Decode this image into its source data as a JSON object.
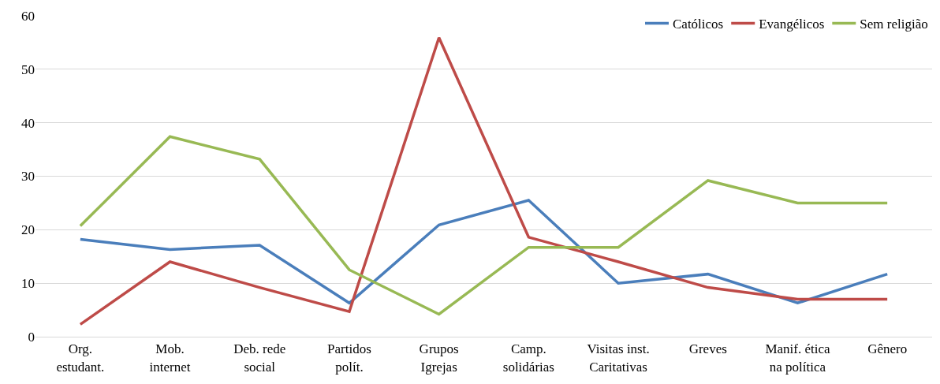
{
  "chart_data": {
    "type": "line",
    "categories": [
      "Org.\nestudant.",
      "Mob.\ninternet",
      "Deb. rede\nsocial",
      "Partidos\npolít.",
      "Grupos\nIgrejas",
      "Camp.\nsolidárias",
      "Visitas inst.\nCaritativas",
      "Greves",
      "Manif. ética\nna política",
      "Gênero"
    ],
    "series": [
      {
        "name": "Católicos",
        "color": "#4a7ebb",
        "values": [
          18.2,
          16.3,
          17.1,
          6.3,
          20.9,
          25.5,
          10.0,
          11.7,
          6.3,
          11.7
        ]
      },
      {
        "name": "Evangélicos",
        "color": "#be4b48",
        "values": [
          2.3,
          14.0,
          9.2,
          4.7,
          55.9,
          18.6,
          14.0,
          9.2,
          7.0,
          7.0
        ]
      },
      {
        "name": "Sem religião",
        "color": "#98b954",
        "values": [
          20.7,
          37.4,
          33.2,
          12.5,
          4.2,
          16.7,
          16.7,
          29.2,
          25.0,
          25.0
        ]
      }
    ],
    "ylim": [
      0,
      60
    ],
    "yticks": [
      0,
      10,
      20,
      30,
      40,
      50,
      60
    ],
    "grid": "y",
    "legend": "top right",
    "marker": "none"
  }
}
